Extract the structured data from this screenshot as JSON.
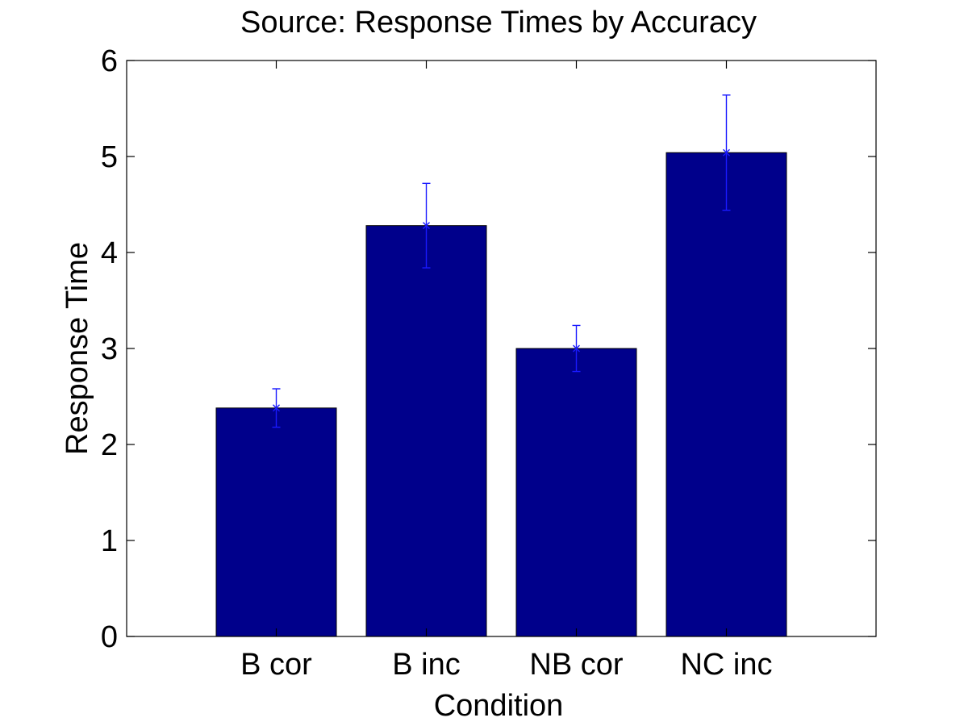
{
  "chart_data": {
    "type": "bar",
    "title": "Source: Response Times by Accuracy",
    "xlabel": "Condition",
    "ylabel": "Response Time",
    "categories": [
      "B cor",
      "B inc",
      "NB cor",
      "NC inc"
    ],
    "values": [
      2.38,
      4.28,
      3.0,
      5.04
    ],
    "errors": [
      0.2,
      0.44,
      0.24,
      0.6
    ],
    "ylim": [
      0,
      6
    ],
    "yticks": [
      "0",
      "1",
      "2",
      "3",
      "4",
      "5",
      "6"
    ],
    "grid": false,
    "bar_color": "#00008b",
    "error_color": "#1a1aff"
  }
}
